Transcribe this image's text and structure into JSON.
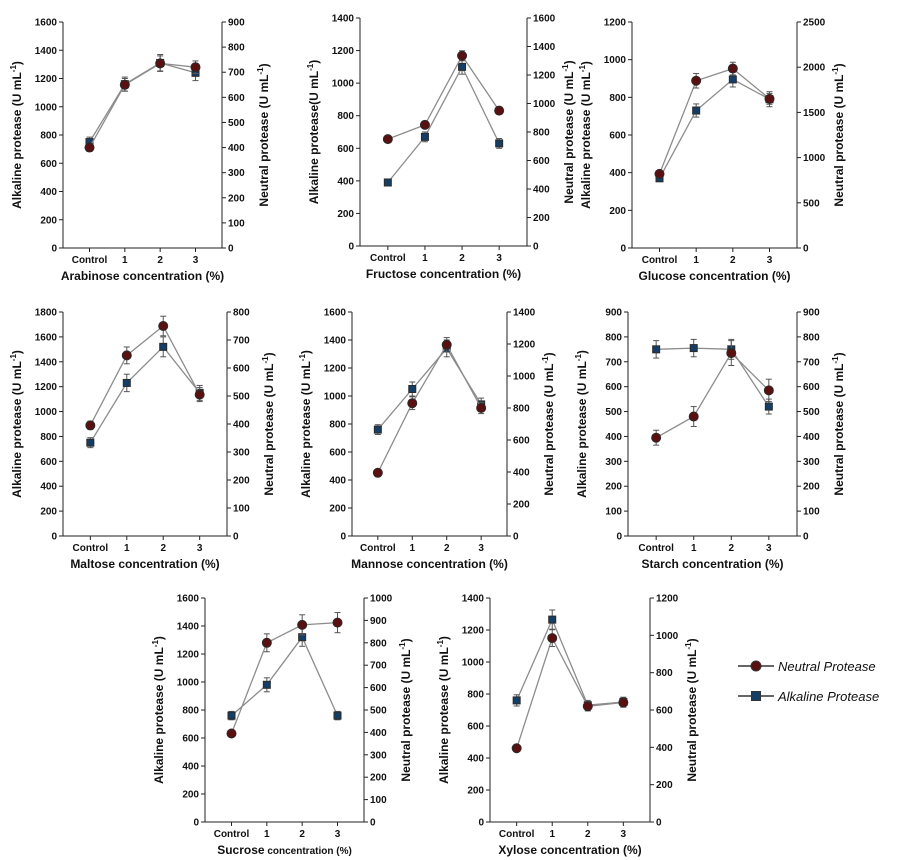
{
  "legend": {
    "neutral_label": "Neutral Protease",
    "alkaline_label": "Alkaline Protease"
  },
  "colors": {
    "neutral_fill": "#5a1010",
    "alkaline_fill": "#143e66",
    "line": "#8c8c8c",
    "error": "#555555",
    "axis": "#222222"
  },
  "chart_data": [
    {
      "type": "line",
      "categories": [
        "Control",
        "1",
        "2",
        "3"
      ],
      "xlabel": "Arabinose  concentration (%)",
      "ylabel_left": "Alkaline protease (U mL-1)",
      "ylabel_right": "Neutral protease (U mL-1)",
      "ylim_left": [
        0,
        1600
      ],
      "yticks_left": [
        0,
        200,
        400,
        600,
        800,
        1000,
        1200,
        1400,
        1600
      ],
      "ylim_right": [
        0,
        900
      ],
      "yticks_right": [
        0,
        100,
        200,
        300,
        400,
        500,
        600,
        700,
        800,
        900
      ],
      "series": [
        {
          "name": "Neutral Protease",
          "axis": "right",
          "marker": "circle",
          "values": [
            400,
            650,
            735,
            720
          ],
          "errors": [
            15,
            25,
            30,
            25
          ]
        },
        {
          "name": "Alkaline Protease",
          "axis": "left",
          "marker": "square",
          "values": [
            750,
            1160,
            1310,
            1240
          ],
          "errors": [
            35,
            50,
            60,
            55
          ]
        }
      ]
    },
    {
      "type": "line",
      "categories": [
        "Control",
        "1",
        "2",
        "3"
      ],
      "xlabel": "Fructose concentration (%)",
      "ylabel_left": "Alkaline protease(U mL-1)",
      "ylabel_right": "Neutral protease (U mL-1)",
      "ylim_left": [
        0,
        1400
      ],
      "yticks_left": [
        0,
        200,
        400,
        600,
        800,
        1000,
        1200,
        1400
      ],
      "ylim_right": [
        0,
        1600
      ],
      "yticks_right": [
        0,
        200,
        400,
        600,
        800,
        1000,
        1200,
        1400,
        1600
      ],
      "series": [
        {
          "name": "Neutral Protease",
          "axis": "right",
          "marker": "circle",
          "values": [
            750,
            850,
            1335,
            950
          ],
          "errors": [
            20,
            25,
            35,
            25
          ]
        },
        {
          "name": "Alkaline Protease",
          "axis": "left",
          "marker": "square",
          "values": [
            390,
            670,
            1100,
            630
          ],
          "errors": [
            15,
            30,
            45,
            30
          ]
        }
      ]
    },
    {
      "type": "line",
      "categories": [
        "Control",
        "1",
        "2",
        "3"
      ],
      "xlabel": "Glucose concentration (%)",
      "ylabel_left": "Alkaline protease (U mL-1)",
      "ylabel_right": "Neutral protease (U mL-1)",
      "ylim_left": [
        0,
        1200
      ],
      "yticks_left": [
        0,
        200,
        400,
        600,
        800,
        1000,
        1200
      ],
      "ylim_right": [
        0,
        2500
      ],
      "yticks_right": [
        0,
        500,
        1000,
        1500,
        2000,
        2500
      ],
      "series": [
        {
          "name": "Neutral Protease",
          "axis": "right",
          "marker": "circle",
          "values": [
            820,
            1850,
            1985,
            1650
          ],
          "errors": [
            25,
            80,
            70,
            60
          ]
        },
        {
          "name": "Alkaline Protease",
          "axis": "left",
          "marker": "square",
          "values": [
            370,
            730,
            895,
            790
          ],
          "errors": [
            15,
            35,
            40,
            40
          ]
        }
      ]
    },
    {
      "type": "line",
      "categories": [
        "Control",
        "1",
        "2",
        "3"
      ],
      "xlabel": "Maltose concentration (%)",
      "ylabel_left": "Alkaline protease (U mL-1)",
      "ylabel_right": "Neutral protease (U mL-1)",
      "ylim_left": [
        0,
        1800
      ],
      "yticks_left": [
        0,
        200,
        400,
        600,
        800,
        1000,
        1200,
        1400,
        1600,
        1800
      ],
      "ylim_right": [
        0,
        800
      ],
      "yticks_right": [
        0,
        100,
        200,
        300,
        400,
        500,
        600,
        700,
        800
      ],
      "series": [
        {
          "name": "Neutral Protease",
          "axis": "right",
          "marker": "circle",
          "values": [
            395,
            645,
            750,
            505
          ],
          "errors": [
            15,
            30,
            35,
            25
          ]
        },
        {
          "name": "Alkaline Protease",
          "axis": "left",
          "marker": "square",
          "values": [
            750,
            1230,
            1520,
            1150
          ],
          "errors": [
            40,
            70,
            80,
            60
          ]
        }
      ]
    },
    {
      "type": "line",
      "categories": [
        "Control",
        "1",
        "2",
        "3"
      ],
      "xlabel": "Mannose concentration (%)",
      "ylabel_left": "Alkaline protease (U mL-1)",
      "ylabel_right": "Neutral protease (U mL-1)",
      "ylim_left": [
        0,
        1600
      ],
      "yticks_left": [
        0,
        200,
        400,
        600,
        800,
        1000,
        1200,
        1400,
        1600
      ],
      "ylim_right": [
        0,
        1400
      ],
      "yticks_right": [
        0,
        200,
        400,
        600,
        800,
        1000,
        1200,
        1400
      ],
      "series": [
        {
          "name": "Neutral Protease",
          "axis": "right",
          "marker": "circle",
          "values": [
            395,
            830,
            1195,
            800
          ],
          "errors": [
            15,
            40,
            45,
            35
          ]
        },
        {
          "name": "Alkaline Protease",
          "axis": "left",
          "marker": "square",
          "values": [
            760,
            1050,
            1340,
            940
          ],
          "errors": [
            35,
            50,
            60,
            45
          ]
        }
      ]
    },
    {
      "type": "line",
      "categories": [
        "Control",
        "1",
        "2",
        "3"
      ],
      "xlabel": "Starch concentration (%)",
      "ylabel_left": "Alkaline protease (U mL-1)",
      "ylabel_right": "Neutral protease (U mL-1)",
      "ylim_left": [
        0,
        900
      ],
      "yticks_left": [
        0,
        100,
        200,
        300,
        400,
        500,
        600,
        700,
        800,
        900
      ],
      "ylim_right": [
        0,
        900
      ],
      "yticks_right": [
        0,
        100,
        200,
        300,
        400,
        500,
        600,
        700,
        800,
        900
      ],
      "series": [
        {
          "name": "Neutral Protease",
          "axis": "right",
          "marker": "circle",
          "values": [
            395,
            480,
            735,
            585
          ],
          "errors": [
            30,
            40,
            50,
            45
          ]
        },
        {
          "name": "Alkaline Protease",
          "axis": "left",
          "marker": "square",
          "values": [
            750,
            755,
            750,
            520
          ],
          "errors": [
            35,
            35,
            40,
            30
          ]
        }
      ]
    },
    {
      "type": "line",
      "categories": [
        "Control",
        "1",
        "2",
        "3"
      ],
      "xlabel": "Sucrose concentration (%)",
      "xlabel_main": "Sucrose",
      "xlabel_rest": " concentration (%)",
      "ylabel_left": "Alkaline protease (U mL-1)",
      "ylabel_right": "Neutral protease (U mL-1)",
      "ylim_left": [
        0,
        1600
      ],
      "yticks_left": [
        0,
        200,
        400,
        600,
        800,
        1000,
        1200,
        1400,
        1600
      ],
      "ylim_right": [
        0,
        1000
      ],
      "yticks_right": [
        0,
        100,
        200,
        300,
        400,
        500,
        600,
        700,
        800,
        900,
        1000
      ],
      "series": [
        {
          "name": "Neutral Protease",
          "axis": "right",
          "marker": "circle",
          "values": [
            395,
            800,
            880,
            890
          ],
          "errors": [
            15,
            40,
            45,
            45
          ]
        },
        {
          "name": "Alkaline Protease",
          "axis": "left",
          "marker": "square",
          "values": [
            760,
            980,
            1320,
            760
          ],
          "errors": [
            30,
            50,
            65,
            30
          ]
        }
      ]
    },
    {
      "type": "line",
      "categories": [
        "Control",
        "1",
        "2",
        "3"
      ],
      "xlabel": "Xylose concentration (%)",
      "ylabel_left": "Alkaline protease (U mL-1)",
      "ylabel_right": "Neutral protease (U mL-1)",
      "ylim_left": [
        0,
        1400
      ],
      "yticks_left": [
        0,
        200,
        400,
        600,
        800,
        1000,
        1200,
        1400
      ],
      "ylim_right": [
        0,
        1200
      ],
      "yticks_right": [
        0,
        200,
        400,
        600,
        800,
        1000,
        1200
      ],
      "series": [
        {
          "name": "Neutral Protease",
          "axis": "right",
          "marker": "circle",
          "values": [
            395,
            985,
            620,
            640
          ],
          "errors": [
            10,
            45,
            25,
            25
          ]
        },
        {
          "name": "Alkaline Protease",
          "axis": "left",
          "marker": "square",
          "values": [
            760,
            1265,
            730,
            750
          ],
          "errors": [
            35,
            60,
            30,
            30
          ]
        }
      ]
    }
  ]
}
